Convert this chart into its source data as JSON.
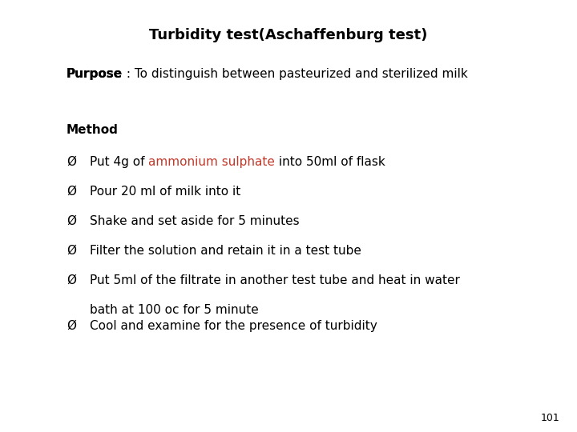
{
  "title": "Turbidity test(Aschaffenburg test)",
  "bg_color": "#ffffff",
  "title_fontsize": 13,
  "title_fontweight": "bold",
  "purpose_label": "Purpose",
  "purpose_rest": " : To distinguish between pasteurized and sterilized milk",
  "purpose_fontsize": 11,
  "method_label": "Method",
  "method_fontsize": 11,
  "bullet_char": "Ø",
  "bullet_fontsize": 11,
  "body_fontsize": 11,
  "page_number": "101",
  "page_fontsize": 9,
  "red_color": "#c0392b",
  "black_color": "#000000",
  "bullet_items": [
    {
      "pre": "Put 4g of ",
      "highlight": "ammonium sulphate",
      "post": " into 50ml of flask"
    },
    {
      "pre": "Pour 20 ml of milk into it",
      "highlight": "",
      "post": ""
    },
    {
      "pre": "Shake and set aside for 5 minutes",
      "highlight": "",
      "post": ""
    },
    {
      "pre": "Filter the solution and retain it in a test tube",
      "highlight": "",
      "post": ""
    },
    {
      "pre": "Put 5ml of the filtrate in another test tube and heat in water\n    bath at 100 oc for 5 minute",
      "highlight": "",
      "post": ""
    },
    {
      "pre": "Cool and examine for the presence of turbidity",
      "highlight": "",
      "post": ""
    }
  ]
}
